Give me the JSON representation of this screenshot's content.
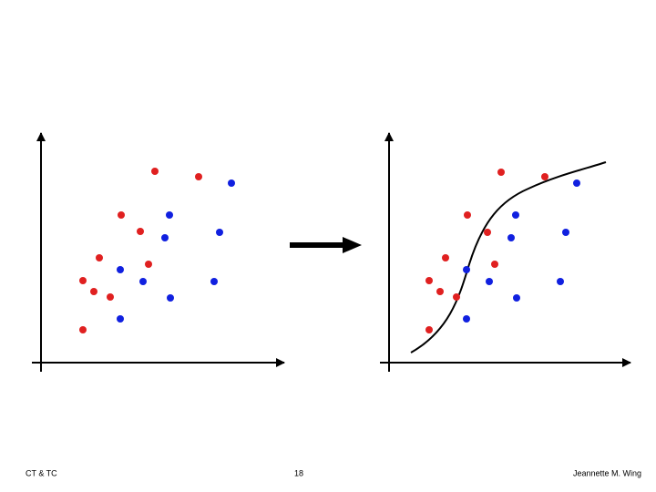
{
  "footer": {
    "left": "CT & TC",
    "center": "18",
    "right": "Jeannette M. Wing"
  }
}
